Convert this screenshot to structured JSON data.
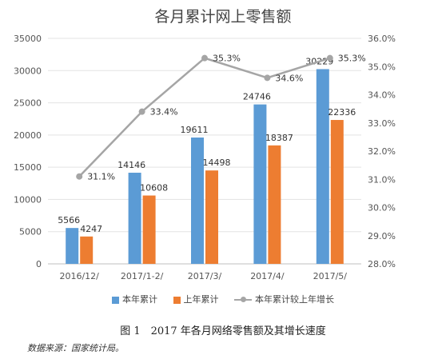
{
  "chart_data": {
    "type": "bar",
    "title": "各月累计网上零售额",
    "categories": [
      "2016/12/",
      "2017/1-2/",
      "2017/3/",
      "2017/4/",
      "2017/5/"
    ],
    "series": [
      {
        "name": "本年累计",
        "type": "bar",
        "axis": "left",
        "color": "#5b9bd5",
        "values": [
          5566,
          14146,
          19611,
          24746,
          30229
        ]
      },
      {
        "name": "上年累计",
        "type": "bar",
        "axis": "left",
        "color": "#ed7d31",
        "values": [
          4247,
          10608,
          14498,
          18387,
          22336
        ]
      },
      {
        "name": "本年累计较上年增长",
        "type": "line",
        "axis": "right",
        "color": "#a5a5a5",
        "values": [
          31.1,
          33.4,
          35.3,
          34.6,
          35.3
        ]
      }
    ],
    "left_axis": {
      "range": [
        0,
        35000
      ],
      "ticks": [
        "0",
        "5000",
        "10000",
        "15000",
        "20000",
        "25000",
        "30000",
        "35000"
      ]
    },
    "right_axis": {
      "range": [
        28.0,
        36.0
      ],
      "ticks": [
        "28.0%",
        "29.0%",
        "30.0%",
        "31.0%",
        "32.0%",
        "33.0%",
        "34.0%",
        "35.0%",
        "36.0%"
      ]
    },
    "line_labels": [
      "31.1%",
      "33.4%",
      "35.3%",
      "34.6%",
      "35.3%"
    ],
    "grid": true,
    "legend_position": "bottom"
  },
  "caption": "图 1　2017 年各月网络零售额及其增长速度",
  "source": "数据来源：国家统计局。"
}
